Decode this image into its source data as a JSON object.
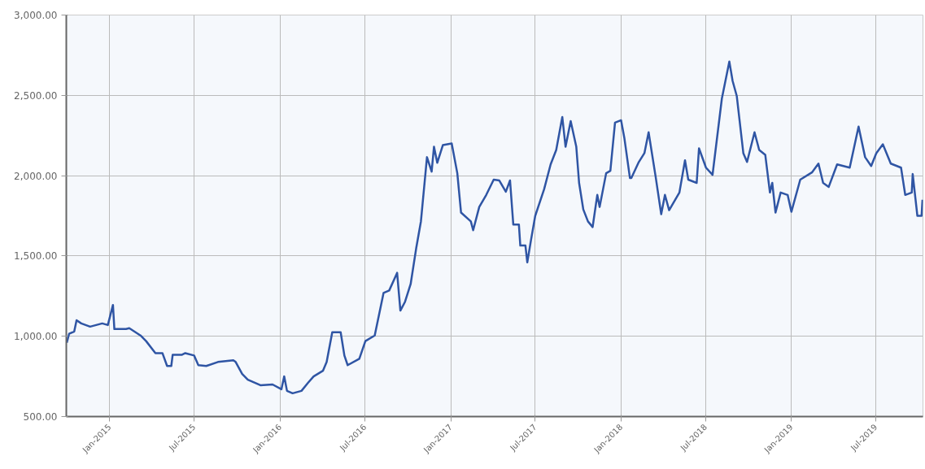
{
  "chart_data": {
    "type": "line",
    "color": "#2f55a4",
    "grid": true,
    "marker": "none",
    "line_style": "solid",
    "xlim": [
      "2014-09-30",
      "2019-10-10"
    ],
    "xticks": [
      {
        "value": "2015-01-01",
        "label": "Jan-2015"
      },
      {
        "value": "2015-07-01",
        "label": "Jul-2015"
      },
      {
        "value": "2016-01-01",
        "label": "Jan-2016"
      },
      {
        "value": "2016-07-01",
        "label": "Jul-2016"
      },
      {
        "value": "2017-01-01",
        "label": "Jan-2017"
      },
      {
        "value": "2017-07-01",
        "label": "Jul-2017"
      },
      {
        "value": "2018-01-01",
        "label": "Jan-2018"
      },
      {
        "value": "2018-07-01",
        "label": "Jul-2018"
      },
      {
        "value": "2019-01-01",
        "label": "Jan-2019"
      },
      {
        "value": "2019-07-01",
        "label": "Jul-2019"
      }
    ],
    "ylim": [
      500,
      3000
    ],
    "yticks": [
      {
        "value": 500,
        "label": "500.00"
      },
      {
        "value": 1000,
        "label": "1,000.00"
      },
      {
        "value": 1500,
        "label": "1,500.00"
      },
      {
        "value": 2000,
        "label": "2,000.00"
      },
      {
        "value": 2500,
        "label": "2,500.00"
      },
      {
        "value": 3000,
        "label": "3,000.00"
      }
    ],
    "x": [
      "2014-10-01",
      "2014-10-06",
      "2014-10-17",
      "2014-10-22",
      "2014-11-01",
      "2014-11-20",
      "2014-12-16",
      "2014-12-28",
      "2015-01-08",
      "2015-01-11",
      "2015-02-05",
      "2015-02-12",
      "2015-03-08",
      "2015-03-20",
      "2015-04-09",
      "2015-04-24",
      "2015-05-04",
      "2015-05-13",
      "2015-05-16",
      "2015-06-05",
      "2015-06-12",
      "2015-07-01",
      "2015-07-10",
      "2015-07-27",
      "2015-08-21",
      "2015-09-23",
      "2015-09-28",
      "2015-10-12",
      "2015-10-24",
      "2015-11-20",
      "2015-12-16",
      "2016-01-04",
      "2016-01-10",
      "2016-01-16",
      "2016-01-28",
      "2016-02-16",
      "2016-03-01",
      "2016-03-13",
      "2016-04-02",
      "2016-04-10",
      "2016-04-22",
      "2016-05-10",
      "2016-05-18",
      "2016-05-25",
      "2016-06-19",
      "2016-07-02",
      "2016-07-22",
      "2016-08-10",
      "2016-08-22",
      "2016-09-08",
      "2016-09-15",
      "2016-09-25",
      "2016-10-07",
      "2016-10-19",
      "2016-10-29",
      "2016-11-11",
      "2016-11-21",
      "2016-11-26",
      "2016-12-03",
      "2016-12-15",
      "2017-01-03",
      "2017-01-15",
      "2017-01-23",
      "2017-02-13",
      "2017-02-18",
      "2017-03-03",
      "2017-03-18",
      "2017-04-03",
      "2017-04-15",
      "2017-04-29",
      "2017-05-08",
      "2017-05-15",
      "2017-05-27",
      "2017-05-30",
      "2017-06-10",
      "2017-06-14",
      "2017-06-22",
      "2017-07-01",
      "2017-07-20",
      "2017-08-03",
      "2017-08-15",
      "2017-08-28",
      "2017-09-04",
      "2017-09-15",
      "2017-09-27",
      "2017-10-03",
      "2017-10-12",
      "2017-10-22",
      "2017-11-01",
      "2017-11-11",
      "2017-11-16",
      "2017-11-30",
      "2017-12-09",
      "2017-12-19",
      "2018-01-01",
      "2018-01-08",
      "2018-01-20",
      "2018-01-23",
      "2018-02-08",
      "2018-02-20",
      "2018-03-01",
      "2018-03-16",
      "2018-03-28",
      "2018-04-05",
      "2018-04-14",
      "2018-05-06",
      "2018-05-18",
      "2018-05-25",
      "2018-06-12",
      "2018-06-17",
      "2018-07-02",
      "2018-07-16",
      "2018-08-05",
      "2018-08-21",
      "2018-08-28",
      "2018-09-06",
      "2018-09-20",
      "2018-09-28",
      "2018-10-14",
      "2018-10-24",
      "2018-11-06",
      "2018-11-16",
      "2018-11-21",
      "2018-11-28",
      "2018-12-09",
      "2018-12-24",
      "2019-01-01",
      "2019-01-20",
      "2019-02-14",
      "2019-02-28",
      "2019-03-10",
      "2019-03-22",
      "2019-04-09",
      "2019-05-06",
      "2019-05-25",
      "2019-06-08",
      "2019-06-21",
      "2019-07-02",
      "2019-07-16",
      "2019-08-02",
      "2019-08-24",
      "2019-09-02",
      "2019-09-16",
      "2019-09-18",
      "2019-09-28",
      "2019-10-07",
      "2019-10-09"
    ],
    "values": [
      960,
      1015,
      1030,
      1100,
      1080,
      1060,
      1080,
      1070,
      1195,
      1045,
      1045,
      1050,
      1005,
      970,
      895,
      895,
      815,
      815,
      885,
      885,
      895,
      880,
      820,
      815,
      840,
      850,
      840,
      765,
      730,
      695,
      700,
      670,
      750,
      660,
      645,
      660,
      710,
      750,
      785,
      840,
      1025,
      1025,
      880,
      820,
      860,
      970,
      1005,
      1270,
      1285,
      1395,
      1160,
      1215,
      1325,
      1550,
      1715,
      2115,
      2025,
      2180,
      2080,
      2190,
      2200,
      2015,
      1770,
      1715,
      1660,
      1805,
      1880,
      1975,
      1970,
      1900,
      1970,
      1695,
      1695,
      1565,
      1565,
      1460,
      1600,
      1750,
      1915,
      2070,
      2160,
      2365,
      2180,
      2340,
      2180,
      1955,
      1790,
      1715,
      1680,
      1880,
      1805,
      2015,
      2030,
      2330,
      2345,
      2235,
      1985,
      1985,
      2085,
      2140,
      2270,
      1995,
      1760,
      1880,
      1785,
      1895,
      2095,
      1975,
      1955,
      2170,
      2050,
      2005,
      2480,
      2710,
      2590,
      2495,
      2140,
      2085,
      2270,
      2160,
      2130,
      1895,
      1955,
      1770,
      1895,
      1880,
      1775,
      1975,
      2020,
      2075,
      1955,
      1930,
      2070,
      2050,
      2305,
      2115,
      2060,
      2140,
      2195,
      2075,
      2050,
      1880,
      1895,
      2010,
      1750,
      1750,
      1850
    ]
  }
}
